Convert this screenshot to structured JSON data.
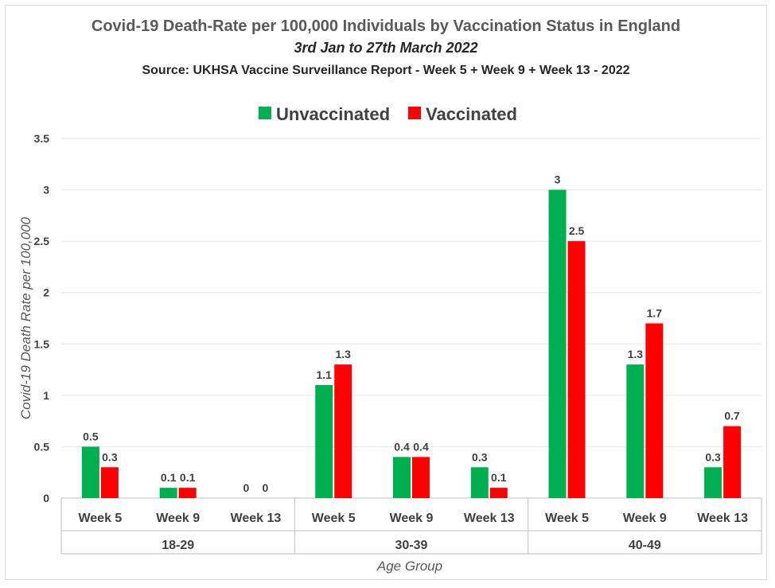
{
  "chart_data": {
    "type": "bar",
    "title": "Covid-19 Death-Rate per 100,000 Individuals by Vaccination Status in England",
    "subtitle": "3rd Jan to 27th March 2022",
    "source": "Source: UKHSA Vaccine Surveillance Report - Week 5 + Week 9 + Week 13 - 2022",
    "ylabel": "Covid-19 Death Rate per 100,000",
    "xlabel": "Age Group",
    "ylim": [
      0,
      3.5
    ],
    "yticks": [
      "0",
      "0.5",
      "1",
      "1.5",
      "2",
      "2.5",
      "3",
      "3.5"
    ],
    "grid": true,
    "legend_position": "top",
    "groups": [
      {
        "label": "18-29",
        "categories": [
          "Week 5",
          "Week 9",
          "Week 13"
        ]
      },
      {
        "label": "30-39",
        "categories": [
          "Week 5",
          "Week 9",
          "Week 13"
        ]
      },
      {
        "label": "40-49",
        "categories": [
          "Week 5",
          "Week 9",
          "Week 13"
        ]
      }
    ],
    "categories": [
      "Week 5",
      "Week 9",
      "Week 13",
      "Week 5",
      "Week 9",
      "Week 13",
      "Week 5",
      "Week 9",
      "Week 13"
    ],
    "series": [
      {
        "name": "Unvaccinated",
        "color": "#00b050",
        "values": [
          0.5,
          0.1,
          0,
          1.1,
          0.4,
          0.3,
          3,
          1.3,
          0.3
        ],
        "labels": [
          "0.5",
          "0.1",
          "0",
          "1.1",
          "0.4",
          "0.3",
          "3",
          "1.3",
          "0.3"
        ]
      },
      {
        "name": "Vaccinated",
        "color": "#ff0000",
        "values": [
          0.3,
          0.1,
          0,
          1.3,
          0.4,
          0.1,
          2.5,
          1.7,
          0.7
        ],
        "labels": [
          "0.3",
          "0.1",
          "0",
          "1.3",
          "0.4",
          "0.1",
          "2.5",
          "1.7",
          "0.7"
        ]
      }
    ]
  }
}
